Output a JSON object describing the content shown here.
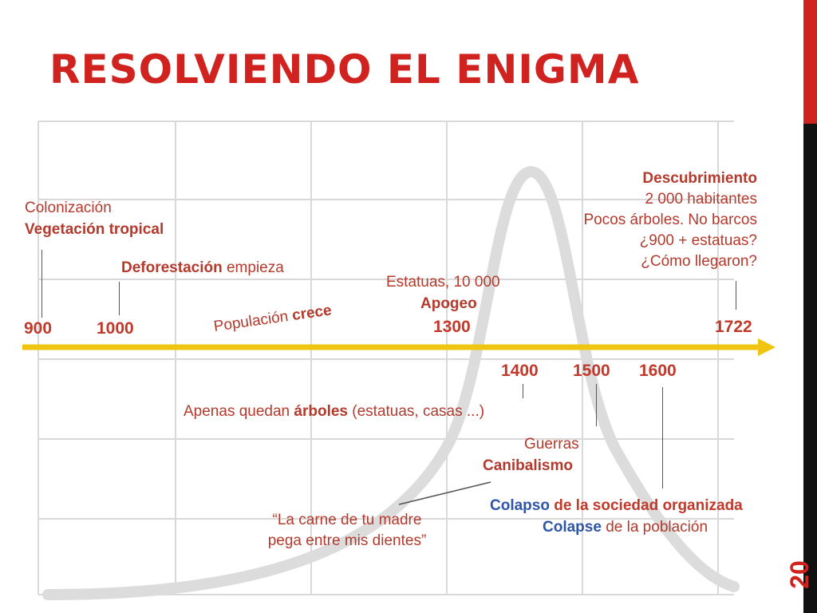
{
  "title": "RESOLVIENDO EL ENIGMA",
  "page_number": "20",
  "colors": {
    "accent": "#d0231f",
    "text": "#b33a2c",
    "blue": "#2e55a6",
    "timeline": "#f1c40f"
  },
  "timeline": {
    "years_above": [
      "900",
      "1000",
      "1300",
      "1722"
    ],
    "years_below": [
      "1400",
      "1500",
      "1600"
    ]
  },
  "labels": {
    "colonizacion": "Colonización",
    "vegetacion": "Vegetación tropical",
    "deforestacion_bold": "Deforestación",
    "deforestacion_rest": " empieza",
    "poblacion": "Populación ",
    "poblacion_bold": "crece",
    "estatuas": "Estatuas, 10 000",
    "apogeo": "Apogeo",
    "descubrimiento": "Descubrimiento",
    "habitantes": "2 000 habitantes",
    "pocos_arboles": "Pocos árboles. No barcos",
    "pregunta1": "¿900 + estatuas?",
    "pregunta2": "¿Cómo llegaron?",
    "apenas_pre": "Apenas quedan ",
    "apenas_bold": "árboles",
    "apenas_post": " (estatuas, casas ...)",
    "guerras": "Guerras",
    "canibalismo": "Canibalismo",
    "colapso_a": "Colapso",
    "colapso_b": " de la sociedad organizada",
    "colapse_a": "Colapse",
    "colapse_b": " de la población",
    "cita1": "“La carne de tu madre",
    "cita2": "pega entre mis dientes”"
  }
}
